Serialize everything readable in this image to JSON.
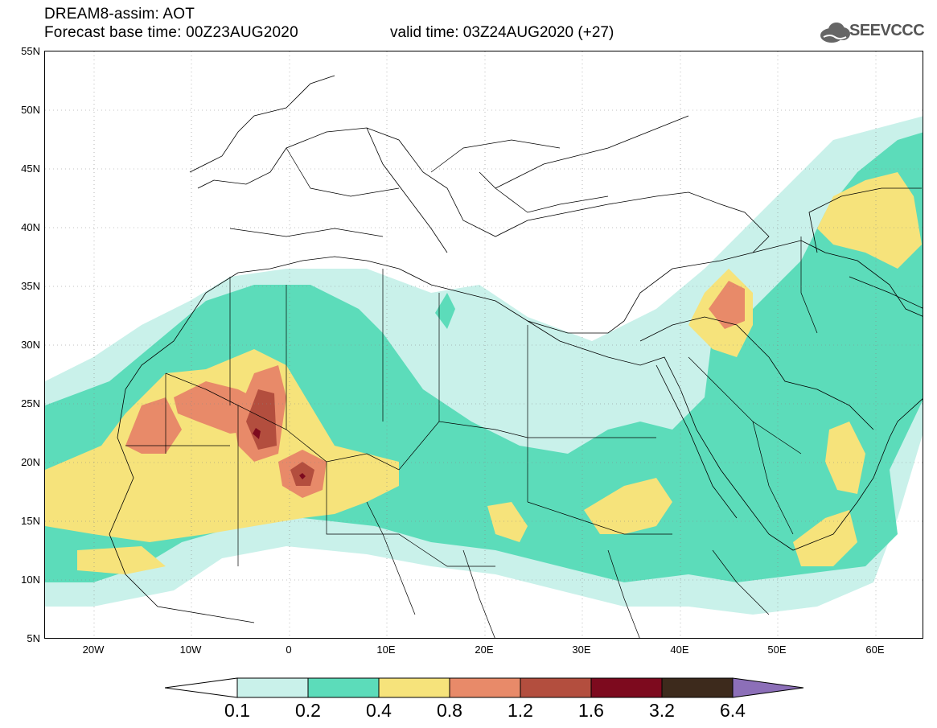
{
  "header": {
    "title": "DREAM8-assim: AOT",
    "base_time": "Forecast base time: 00Z23AUG2020",
    "valid_time": "valid time: 03Z24AUG2020 (+27)",
    "logo_text": "SEEVCCC",
    "logo_icon": "cloud-icon"
  },
  "map": {
    "projection": "lat-lon",
    "lon_range": [
      -25,
      65
    ],
    "lat_range": [
      5,
      55
    ],
    "grid": "dotted",
    "lat_labels": [
      "55N",
      "50N",
      "45N",
      "40N",
      "35N",
      "30N",
      "25N",
      "20N",
      "15N",
      "10N",
      "5N"
    ],
    "lon_labels": [
      "20W",
      "10W",
      "0",
      "10E",
      "20E",
      "30E",
      "40E",
      "50E",
      "60E"
    ]
  },
  "colorbar": {
    "labels": [
      "0.1",
      "0.2",
      "0.4",
      "0.8",
      "1.2",
      "1.6",
      "3.2",
      "6.4"
    ],
    "colors": [
      "#c9f1ea",
      "#5cdcba",
      "#f6e37b",
      "#e88a69",
      "#b34e3e",
      "#7d0a1e",
      "#3d2a1c",
      "#8c6fb8"
    ]
  }
}
